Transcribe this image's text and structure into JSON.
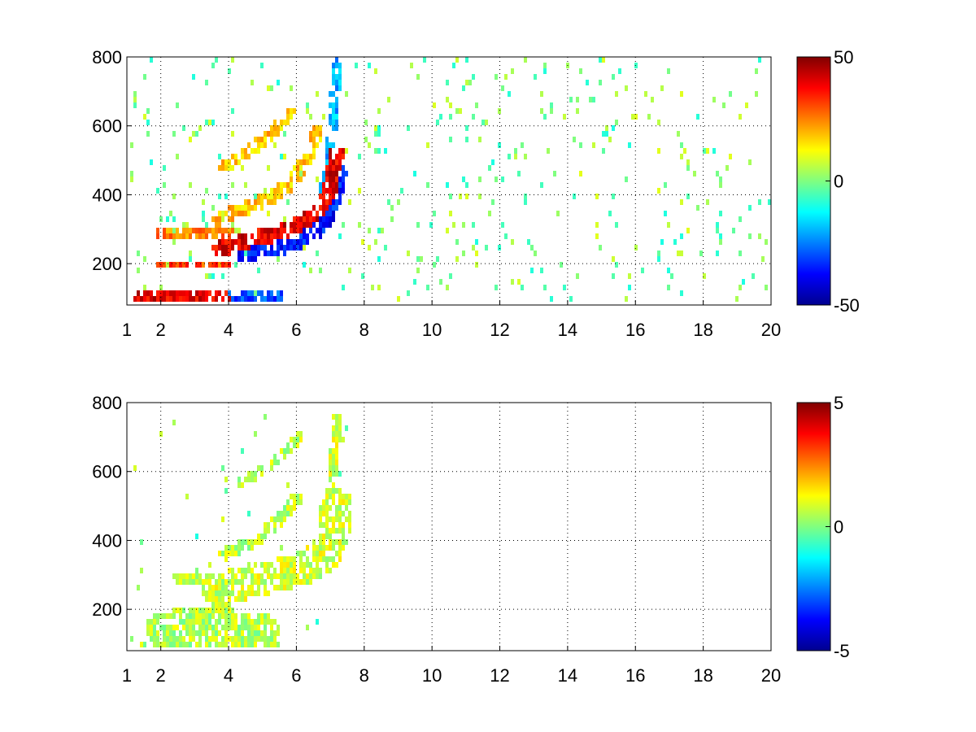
{
  "figure": {
    "background": "#ffffff"
  },
  "chart_data": [
    {
      "type": "heatmap",
      "title": "",
      "xlabel": "",
      "ylabel": "",
      "xlim": [
        1,
        20
      ],
      "ylim": [
        80,
        800
      ],
      "x_ticks": [
        1,
        2,
        4,
        6,
        8,
        10,
        12,
        14,
        16,
        18,
        20
      ],
      "x_tick_labels": [
        "1",
        "2",
        "4",
        "6",
        "8",
        "10",
        "12",
        "14",
        "16",
        "18",
        "20"
      ],
      "y_ticks": [
        200,
        400,
        600,
        800
      ],
      "y_tick_labels": [
        "200",
        "400",
        "600",
        "800"
      ],
      "grid": true,
      "colormap": "jet",
      "colorbar": {
        "min": -50,
        "max": 50,
        "ticks": [
          -50,
          0,
          50
        ],
        "tick_labels": [
          "-50",
          "0",
          "50"
        ]
      },
      "features": [
        {
          "kind": "band",
          "from": [
            2,
            290
          ],
          "to": [
            4,
            290
          ],
          "value": 25,
          "width": 12
        },
        {
          "kind": "band",
          "from": [
            2,
            195
          ],
          "to": [
            4,
            195
          ],
          "value": 30,
          "width": 12
        },
        {
          "kind": "band",
          "from": [
            1.5,
            95
          ],
          "to": [
            3.8,
            95
          ],
          "value": 40,
          "width": 22
        },
        {
          "kind": "band",
          "from": [
            3.8,
            90
          ],
          "to": [
            5.3,
            90
          ],
          "value": -30,
          "width": 30
        },
        {
          "kind": "curve",
          "points": [
            [
              3.7,
              240
            ],
            [
              4.5,
              265
            ],
            [
              5.5,
              290
            ],
            [
              6.2,
              320
            ],
            [
              6.7,
              360
            ],
            [
              7.0,
              420
            ],
            [
              7.2,
              520
            ]
          ],
          "value": 40,
          "width": 18
        },
        {
          "kind": "curve",
          "points": [
            [
              4.5,
              220
            ],
            [
              5.5,
              245
            ],
            [
              6.2,
              270
            ],
            [
              6.8,
              310
            ],
            [
              7.1,
              380
            ],
            [
              7.3,
              470
            ]
          ],
          "value": -35,
          "width": 18
        },
        {
          "kind": "curve",
          "points": [
            [
              3.7,
              330
            ],
            [
              4.5,
              360
            ],
            [
              5.2,
              390
            ],
            [
              5.8,
              430
            ],
            [
              6.3,
              500
            ],
            [
              6.6,
              580
            ]
          ],
          "value": 18,
          "width": 16
        },
        {
          "kind": "curve",
          "points": [
            [
              3.9,
              480
            ],
            [
              4.5,
              520
            ],
            [
              5.2,
              570
            ],
            [
              5.8,
              640
            ]
          ],
          "value": 18,
          "width": 14
        },
        {
          "kind": "curve",
          "points": [
            [
              6.4,
              300
            ],
            [
              6.8,
              400
            ],
            [
              7.0,
              520
            ],
            [
              7.1,
              650
            ],
            [
              7.2,
              780
            ]
          ],
          "value": -20,
          "width": 12
        }
      ],
      "noise": {
        "x_range": [
          1,
          20
        ],
        "density": 0.05,
        "value_range": [
          -10,
          10
        ]
      }
    },
    {
      "type": "heatmap",
      "title": "",
      "xlabel": "",
      "ylabel": "",
      "xlim": [
        1,
        20
      ],
      "ylim": [
        80,
        800
      ],
      "x_ticks": [
        1,
        2,
        4,
        6,
        8,
        10,
        12,
        14,
        16,
        18,
        20
      ],
      "x_tick_labels": [
        "1",
        "2",
        "4",
        "6",
        "8",
        "10",
        "12",
        "14",
        "16",
        "18",
        "20"
      ],
      "y_ticks": [
        200,
        400,
        600,
        800
      ],
      "y_tick_labels": [
        "200",
        "400",
        "600",
        "800"
      ],
      "grid": true,
      "colormap": "jet",
      "colorbar": {
        "min": -5,
        "max": 5,
        "ticks": [
          -5,
          0,
          5
        ],
        "tick_labels": [
          "-5",
          "0",
          "5"
        ]
      },
      "features": [
        {
          "kind": "band",
          "from": [
            1.6,
            90
          ],
          "to": [
            5.3,
            90
          ],
          "value": 0.5,
          "width": 16
        },
        {
          "kind": "band",
          "from": [
            2,
            140
          ],
          "to": [
            5,
            140
          ],
          "value": 0.5,
          "width": 40
        },
        {
          "kind": "band",
          "from": [
            2.5,
            195
          ],
          "to": [
            4,
            195
          ],
          "value": 0.6,
          "width": 14
        },
        {
          "kind": "band",
          "from": [
            2.5,
            290
          ],
          "to": [
            4,
            290
          ],
          "value": 0.6,
          "width": 12
        },
        {
          "kind": "curve",
          "points": [
            [
              3.7,
              250
            ],
            [
              4.5,
              280
            ],
            [
              5.5,
              300
            ],
            [
              6.2,
              320
            ],
            [
              6.8,
              350
            ],
            [
              7.1,
              420
            ],
            [
              7.2,
              500
            ]
          ],
          "value": 0.8,
          "width": 40
        },
        {
          "kind": "curve",
          "points": [
            [
              3.9,
              360
            ],
            [
              4.8,
              400
            ],
            [
              5.5,
              460
            ],
            [
              6.0,
              520
            ]
          ],
          "value": 0.6,
          "width": 14
        },
        {
          "kind": "curve",
          "points": [
            [
              4.2,
              560
            ],
            [
              5.0,
              600
            ],
            [
              5.6,
              650
            ],
            [
              6.1,
              700
            ]
          ],
          "value": 0.6,
          "width": 12
        },
        {
          "kind": "curve",
          "points": [
            [
              6.5,
              300
            ],
            [
              6.9,
              450
            ],
            [
              7.1,
              600
            ],
            [
              7.2,
              760
            ]
          ],
          "value": 0.8,
          "width": 12
        }
      ],
      "noise": {
        "x_range": [
          1,
          8
        ],
        "density": 0.01,
        "value_range": [
          -1,
          1
        ]
      }
    }
  ]
}
